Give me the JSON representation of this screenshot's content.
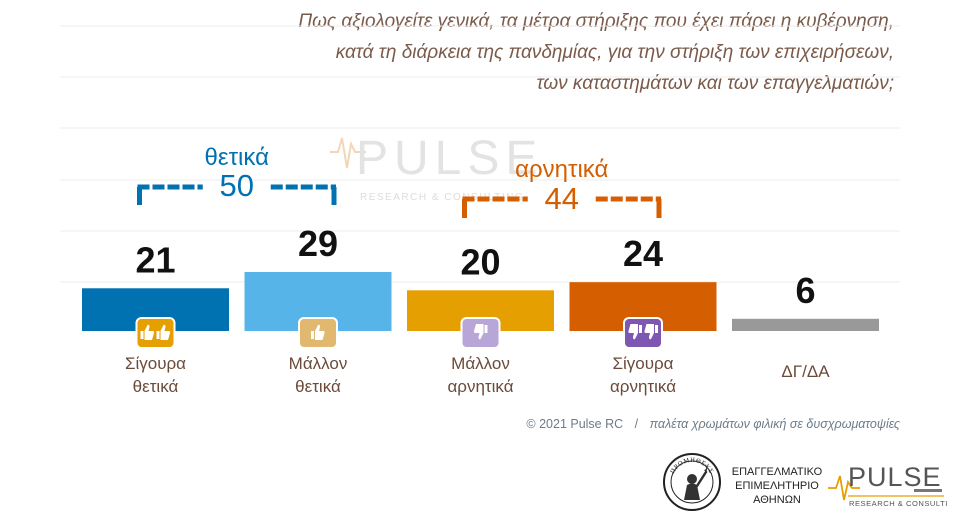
{
  "question": {
    "lines": [
      "Πως αξιολογείτε γενικά, τα μέτρα στήριξης που έχει πάρει η κυβέρνηση,",
      "κατά τη διάρκεια της πανδημίας, για την στήριξη των επιχειρήσεων,",
      "των καταστημάτων και των επαγγελματιών;"
    ]
  },
  "chart_data": {
    "type": "bar",
    "categories": [
      [
        "Σίγουρα",
        "θετικά"
      ],
      [
        "Μάλλον",
        "θετικά"
      ],
      [
        "Μάλλον",
        "αρνητικά"
      ],
      [
        "Σίγουρα",
        "αρνητικά"
      ],
      [
        "ΔΓ/ΔΑ"
      ]
    ],
    "values": [
      21,
      29,
      20,
      24,
      6
    ],
    "value_labels": [
      "21",
      "29",
      "20",
      "24",
      "6"
    ],
    "colors": [
      "#0072b2",
      "#56b4e9",
      "#e69f00",
      "#d55e00",
      "#999999"
    ],
    "icons": [
      "double-thumbs-up-icon",
      "thumbs-up-icon",
      "thumbs-down-icon",
      "double-thumbs-down-icon",
      null
    ],
    "icon_colors": [
      "#e69f00",
      "#e0b870",
      "#b9a6d8",
      "#7e57b2",
      null
    ],
    "ylim": [
      0,
      50
    ],
    "grid": true,
    "groups": [
      {
        "label": "θετικά",
        "total": "50",
        "color": "#0072b2",
        "members": [
          0,
          1
        ]
      },
      {
        "label": "αρνητικά",
        "total": "44",
        "color": "#d55e00",
        "members": [
          2,
          3
        ]
      }
    ]
  },
  "watermark": {
    "brand": "PULSE",
    "tagline": "RESEARCH & CONSULTING"
  },
  "credits": {
    "copyright": "© 2021 Pulse RC",
    "separator": "/",
    "note": "παλέτα χρωμάτων φιλική σε δυσχρωματοψίες"
  },
  "footer": {
    "chamber_lines": [
      "ΕΠΑΓΓΕΛΜΑΤΙΚΟ",
      "ΕΠΙΜΕΛΗΤΗΡΙΟ",
      "ΑΘΗΝΩΝ"
    ],
    "seal_text": "ΠΡΟΜΗΘΕΥΣ",
    "pulse_brand": "PULSE",
    "pulse_tagline": "RESEARCH & CONSULTING"
  }
}
